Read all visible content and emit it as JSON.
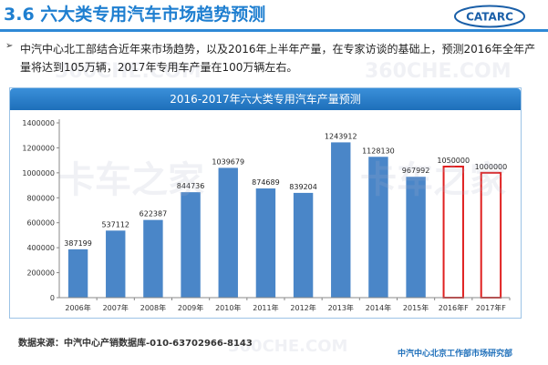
{
  "header": {
    "title": "3.6 六大类专用汽车市场趋势预测",
    "logo_text": "CATARC"
  },
  "bullet": {
    "marker": "➢",
    "text": "中汽中心北工部结合近年来市场趋势，以及2016年上半年产量，在专家访谈的基础上，预测2016年全年产量将达到105万辆，2017年专用车产量在100万辆左右。"
  },
  "chart_data": {
    "type": "bar",
    "title": "2016-2017年六大类专用汽车产量预测",
    "categories": [
      "2006年",
      "2007年",
      "2008年",
      "2009年",
      "2010年",
      "2011年",
      "2012年",
      "2013年",
      "2014年",
      "2015年",
      "2016年F",
      "2017年F"
    ],
    "values": [
      387199,
      537112,
      622387,
      844736,
      1039679,
      874689,
      839204,
      1243912,
      1128130,
      967992,
      1050000,
      1000000
    ],
    "forecast": [
      false,
      false,
      false,
      false,
      false,
      false,
      false,
      false,
      false,
      false,
      true,
      true
    ],
    "ylim": [
      0,
      1400000
    ],
    "yticks": [
      0,
      200000,
      400000,
      600000,
      800000,
      1000000,
      1200000,
      1400000
    ],
    "xlabel": "",
    "ylabel": "",
    "grid": false,
    "colors": {
      "bar": "#4a86c8",
      "forecast_outline": "#e02020",
      "header_bg": "#2a80cf"
    }
  },
  "footer": {
    "source": "数据来源：中汽中心产销数据库-010-63702966-8143",
    "org": "中汽中心北京工作部市场研究部"
  }
}
